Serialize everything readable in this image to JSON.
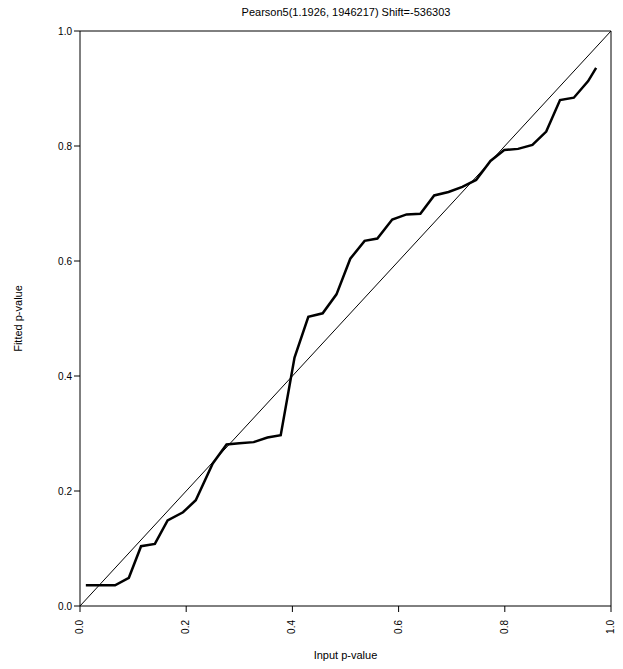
{
  "chart_data": {
    "type": "line",
    "title": "Pearson5(1.1926, 1946217) Shift=-536303",
    "x_label": "Input p-value",
    "y_label": "Fitted p-value",
    "xlim": [
      0,
      1
    ],
    "ylim": [
      0,
      1
    ],
    "xticks": [
      {
        "value": 0,
        "label": "0.0"
      },
      0.2,
      0.4,
      0.6,
      0.8,
      {
        "value": 1,
        "label": "1.0"
      }
    ],
    "yticks": [
      {
        "value": 0,
        "label": "0.0"
      },
      0.2,
      0.4,
      0.6,
      0.8,
      {
        "value": 1,
        "label": "1.0"
      }
    ],
    "grid": false,
    "series": [
      {
        "color": "#000000",
        "line_style": "solid",
        "x": [
          0,
          1
        ],
        "values": [
          0,
          1
        ]
      },
      {
        "color": "#000000",
        "line_style": "solid",
        "x": [
          0.011,
          0.066,
          0.092,
          0.115,
          0.141,
          0.165,
          0.194,
          0.218,
          0.25,
          0.276,
          0.3,
          0.327,
          0.353,
          0.378,
          0.404,
          0.43,
          0.457,
          0.483,
          0.509,
          0.536,
          0.56,
          0.588,
          0.615,
          0.641,
          0.667,
          0.694,
          0.72,
          0.746,
          0.773,
          0.799,
          0.825,
          0.852,
          0.878,
          0.904,
          0.93,
          0.957,
          0.972
        ],
        "values": [
          0.036,
          0.036,
          0.049,
          0.104,
          0.108,
          0.149,
          0.163,
          0.184,
          0.248,
          0.281,
          0.283,
          0.285,
          0.293,
          0.297,
          0.432,
          0.503,
          0.509,
          0.542,
          0.604,
          0.635,
          0.639,
          0.672,
          0.681,
          0.682,
          0.714,
          0.72,
          0.729,
          0.741,
          0.774,
          0.793,
          0.795,
          0.802,
          0.825,
          0.88,
          0.884,
          0.913,
          0.936
        ]
      }
    ]
  }
}
